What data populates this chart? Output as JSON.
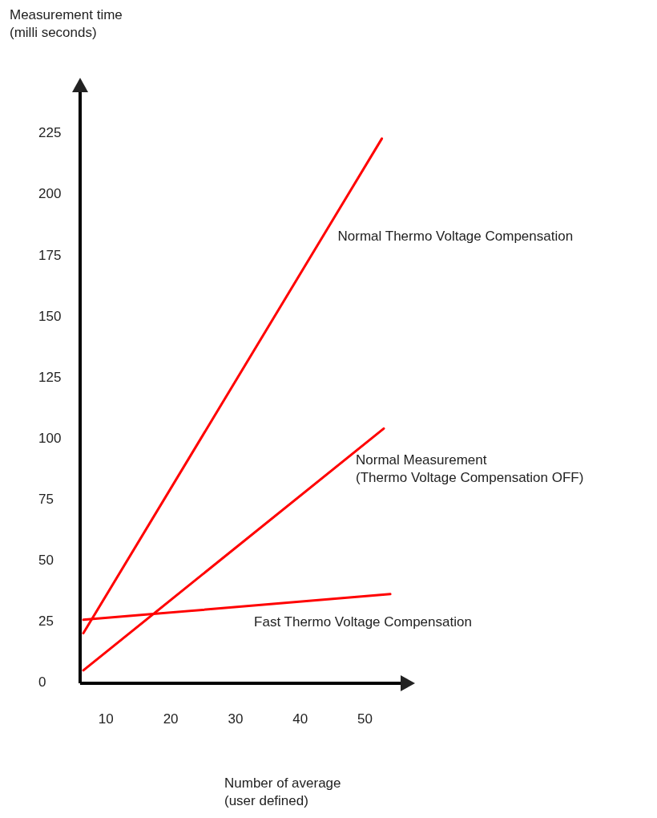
{
  "chart_data": {
    "type": "line",
    "ylabel": "Measurement time\n(milli seconds)",
    "xlabel": "Number of average\n(user defined)",
    "xlim": [
      6,
      55.5
    ],
    "xticks": [
      10,
      20,
      30,
      40,
      50
    ],
    "ylim": [
      0,
      242
    ],
    "yticks": [
      0,
      25,
      50,
      75,
      100,
      125,
      150,
      175,
      200,
      225
    ],
    "grid": false,
    "marker": "none",
    "line_style": "solid",
    "series": [
      {
        "name": "Normal Thermo Voltage Compensation",
        "color": "#ff0000",
        "x": [
          6.5,
          52.6
        ],
        "values": [
          20.5,
          223
        ]
      },
      {
        "name": "Normal Measurement\n(Thermo Voltage Compensation OFF)",
        "color": "#ff0000",
        "x": [
          6.5,
          52.9
        ],
        "values": [
          5.3,
          104.3
        ]
      },
      {
        "name": "Fast Thermo Voltage Compensation",
        "color": "#ff0000",
        "x": [
          6.5,
          53.9
        ],
        "values": [
          26,
          36.5
        ]
      }
    ]
  }
}
